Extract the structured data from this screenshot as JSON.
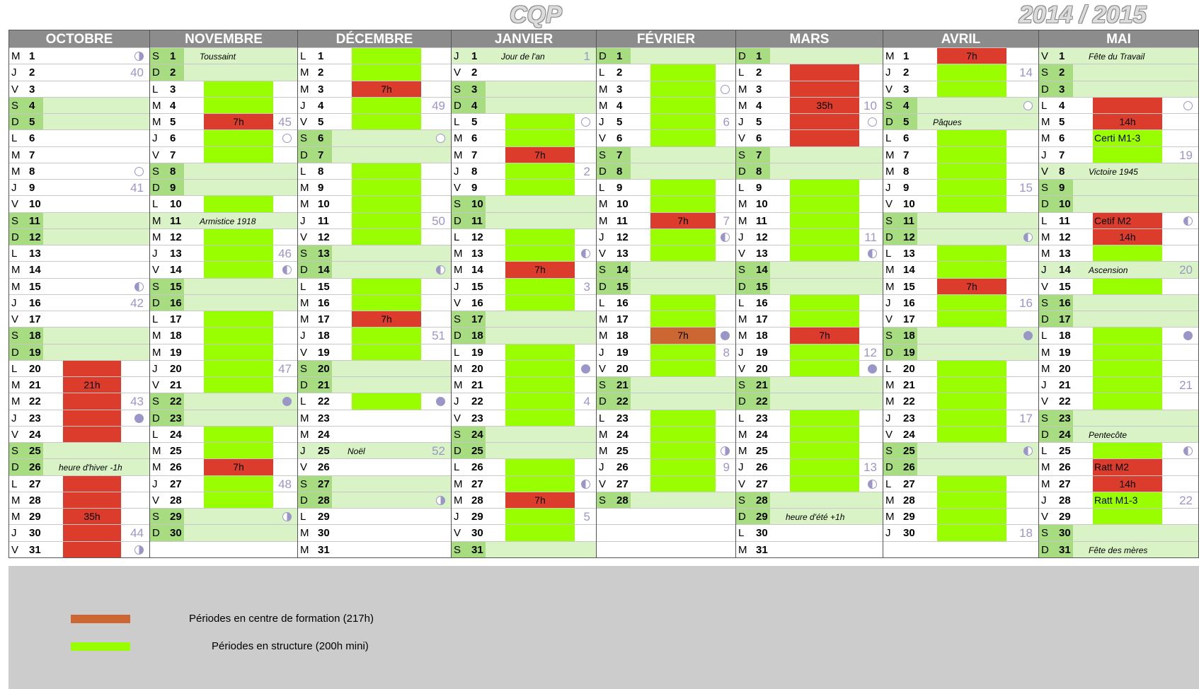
{
  "header": {
    "title": "CQP",
    "year": "2014 / 2015"
  },
  "colors": {
    "green": "#99ff00",
    "red": "#dc3c2c",
    "orange": "#cc6633",
    "weekend": "#d9f3c6"
  },
  "months": [
    {
      "name": "OCTOBRE",
      "first": "M",
      "days": 31,
      "bars": [
        {
          "from": 20,
          "to": 31,
          "c": "r",
          "labels": {
            "21": "21h",
            "29": "35h"
          }
        },
        {
          "from": 23,
          "to": 25,
          "c": "g"
        }
      ],
      "week_numbers": {
        "2": "40",
        "9": "41",
        "16": "42",
        "22": "43",
        "30": "44"
      },
      "moons": {
        "1": "fq",
        "8": "new",
        "15": "lq",
        "23": "full",
        "31": "fq"
      },
      "holidays": {
        "26": "heure d'hiver -1h"
      }
    },
    {
      "name": "NOVEMBRE",
      "first": "S",
      "days": 30,
      "bars": [
        {
          "from": 3,
          "to": 30,
          "c": "g",
          "except": [
            8,
            9,
            11,
            15,
            16,
            22,
            23,
            29,
            30,
            1,
            2
          ]
        },
        {
          "from": 5,
          "to": 5,
          "c": "r",
          "labels": {
            "5": "7h"
          }
        },
        {
          "from": 26,
          "to": 26,
          "c": "r",
          "labels": {
            "26": "7h"
          }
        }
      ],
      "week_numbers": {
        "5": "45",
        "13": "46",
        "20": "47",
        "27": "48"
      },
      "moons": {
        "6": "new",
        "14": "lq",
        "22": "full",
        "29": "fq"
      },
      "holidays": {
        "1": "Toussaint",
        "11": "Armistice 1918"
      }
    },
    {
      "name": "DÉCEMBRE",
      "first": "L",
      "days": 31,
      "bars": [
        {
          "from": 1,
          "to": 22,
          "c": "g"
        },
        {
          "from": 3,
          "to": 3,
          "c": "r",
          "labels": {
            "3": "7h"
          }
        },
        {
          "from": 17,
          "to": 17,
          "c": "r",
          "labels": {
            "17": "7h"
          }
        }
      ],
      "week_numbers": {
        "4": "49",
        "11": "50",
        "18": "51",
        "25": "52"
      },
      "moons": {
        "6": "new",
        "14": "lq",
        "22": "full",
        "28": "fq"
      },
      "holidays": {
        "25": "Noël"
      }
    },
    {
      "name": "JANVIER",
      "first": "J",
      "days": 31,
      "bars": [
        {
          "from": 5,
          "to": 30,
          "c": "g"
        },
        {
          "from": 7,
          "to": 7,
          "c": "r",
          "labels": {
            "7": "7h"
          }
        },
        {
          "from": 14,
          "to": 14,
          "c": "r",
          "labels": {
            "14": "7h"
          }
        },
        {
          "from": 28,
          "to": 28,
          "c": "r",
          "labels": {
            "28": "7h"
          }
        }
      ],
      "week_numbers": {
        "1": "1",
        "8": "2",
        "15": "3",
        "22": "4",
        "29": "5"
      },
      "moons": {
        "5": "new",
        "13": "lq",
        "20": "full",
        "27": "lq"
      },
      "holidays": {
        "1": "Jour de l'an"
      }
    },
    {
      "name": "FÉVRIER",
      "first": "D",
      "days": 28,
      "bars": [
        {
          "from": 2,
          "to": 27,
          "c": "g"
        },
        {
          "from": 11,
          "to": 11,
          "c": "r",
          "labels": {
            "11": "7h"
          }
        },
        {
          "from": 18,
          "to": 18,
          "c": "o",
          "labels": {
            "18": "7h"
          }
        }
      ],
      "week_numbers": {
        "5": "6",
        "11": "7",
        "19": "8",
        "26": "9"
      },
      "moons": {
        "3": "new",
        "12": "lq",
        "18": "full",
        "25": "fq"
      },
      "holidays": {}
    },
    {
      "name": "MARS",
      "first": "D",
      "days": 31,
      "bars": [
        {
          "from": 2,
          "to": 27,
          "c": "g"
        },
        {
          "from": 2,
          "to": 6,
          "c": "r",
          "labels": {
            "4": "35h"
          }
        },
        {
          "from": 18,
          "to": 18,
          "c": "r",
          "labels": {
            "18": "7h"
          }
        }
      ],
      "week_numbers": {
        "4": "10",
        "12": "11",
        "19": "12",
        "26": "13"
      },
      "moons": {
        "5": "new",
        "13": "lq",
        "20": "full",
        "27": "lq"
      },
      "holidays": {
        "29": "heure d'été +1h"
      }
    },
    {
      "name": "AVRIL",
      "first": "M",
      "days": 30,
      "bars": [
        {
          "from": 1,
          "to": 30,
          "c": "g"
        },
        {
          "from": 1,
          "to": 1,
          "c": "r",
          "labels": {
            "1": "7h"
          }
        },
        {
          "from": 15,
          "to": 15,
          "c": "r",
          "labels": {
            "15": "7h"
          }
        }
      ],
      "week_numbers": {
        "2": "14",
        "9": "15",
        "16": "16",
        "23": "17",
        "30": "18"
      },
      "moons": {
        "4": "new",
        "12": "lq",
        "18": "full",
        "25": "lq"
      },
      "holidays": {
        "5": "Pâques"
      }
    },
    {
      "name": "MAI",
      "first": "V",
      "days": 31,
      "bars": [
        {
          "from": 4,
          "to": 29,
          "c": "g"
        },
        {
          "from": 4,
          "to": 5,
          "c": "r",
          "labels": {
            "5": "14h"
          }
        },
        {
          "from": 11,
          "to": 12,
          "c": "r",
          "labels": {
            "11": "Cetif M2",
            "12": "14h"
          }
        },
        {
          "from": 26,
          "to": 27,
          "c": "r",
          "labels": {
            "26": "Ratt M2",
            "27": "14h"
          }
        }
      ],
      "week_numbers": {
        "7": "19",
        "21": "21",
        "28": "22",
        "14": "20"
      },
      "moons": {
        "4": "new",
        "11": "lq",
        "18": "full",
        "25": "lq"
      },
      "holidays": {
        "1": "Fête du Travail",
        "8": "Victoire 1945",
        "14": "Ascension",
        "24": "Pentecôte",
        "31": "Fête des mères"
      },
      "green_labels": {
        "6": "Certi M1-3",
        "28": "Ratt M1-3"
      }
    }
  ],
  "legend": {
    "items": [
      {
        "label": "Périodes en centre de formation (217h)",
        "color": "#cc6633"
      },
      {
        "label": "Périodes en structure (200h mini)",
        "color": "#99ff00"
      }
    ]
  }
}
